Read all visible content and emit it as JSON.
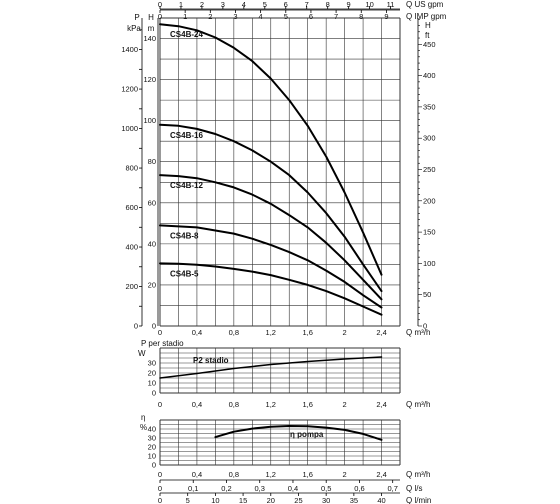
{
  "chart_data": [
    {
      "type": "line",
      "panel": "head",
      "x_unit_label": "Q m³/h",
      "xlim": [
        0,
        2.6
      ],
      "x_ticks": [
        "0",
        "0,4",
        "0,8",
        "1,2",
        "1,6",
        "2",
        "2,4"
      ],
      "top_axes": [
        {
          "label": "Q US gpm",
          "ticks": [
            "0",
            "1",
            "2",
            "3",
            "4",
            "5",
            "6",
            "7",
            "8",
            "9",
            "10",
            "11"
          ],
          "max": 11.45
        },
        {
          "label": "Q IMP gpm",
          "ticks": [
            "0",
            "1",
            "2",
            "3",
            "4",
            "5",
            "6",
            "7",
            "8",
            "9"
          ],
          "max": 9.54
        }
      ],
      "left_axis_p": {
        "label_top": "P",
        "label_unit": "kPa",
        "ticks": [
          "0",
          "200",
          "400",
          "600",
          "800",
          "1000",
          "1200",
          "1400"
        ],
        "max": 1560
      },
      "left_axis_h": {
        "label_top": "H",
        "label_unit": "m",
        "ticks": [
          "0",
          "20",
          "40",
          "60",
          "80",
          "100",
          "120",
          "140"
        ],
        "ylim": [
          0,
          150
        ]
      },
      "right_axis_h": {
        "label_top": "H",
        "label_unit": "ft",
        "ticks": [
          "0",
          "50",
          "100",
          "150",
          "200",
          "250",
          "300",
          "350",
          "400",
          "450"
        ],
        "max": 492
      },
      "series": [
        {
          "name": "CS4B-24",
          "x": [
            0,
            0.2,
            0.4,
            0.6,
            0.8,
            1.0,
            1.2,
            1.4,
            1.6,
            1.8,
            2.0,
            2.2,
            2.4
          ],
          "values": [
            147,
            146,
            144,
            140.5,
            135.5,
            129,
            120.5,
            110,
            97.5,
            82.5,
            65,
            45.5,
            25
          ]
        },
        {
          "name": "CS4B-16",
          "x": [
            0,
            0.2,
            0.4,
            0.6,
            0.8,
            1.0,
            1.2,
            1.4,
            1.6,
            1.8,
            2.0,
            2.2,
            2.4
          ],
          "values": [
            98,
            97.5,
            96,
            93.5,
            90,
            85.5,
            80,
            73.5,
            65,
            55,
            43.5,
            30,
            17
          ]
        },
        {
          "name": "CS4B-12",
          "x": [
            0,
            0.2,
            0.4,
            0.6,
            0.8,
            1.0,
            1.2,
            1.4,
            1.6,
            1.8,
            2.0,
            2.2,
            2.4
          ],
          "values": [
            73.5,
            73,
            72,
            70,
            67.5,
            64,
            59.5,
            54,
            48,
            40.5,
            32,
            22.5,
            13
          ]
        },
        {
          "name": "CS4B-8",
          "x": [
            0,
            0.2,
            0.4,
            0.6,
            0.8,
            1.0,
            1.2,
            1.4,
            1.6,
            1.8,
            2.0,
            2.2,
            2.4
          ],
          "values": [
            49,
            48.5,
            48,
            46.5,
            45,
            42.5,
            39.5,
            36,
            32,
            27,
            21.5,
            15,
            9
          ]
        },
        {
          "name": "CS4B-5",
          "x": [
            0,
            0.2,
            0.4,
            0.6,
            0.8,
            1.0,
            1.2,
            1.4,
            1.6,
            1.8,
            2.0,
            2.2,
            2.4
          ],
          "values": [
            30.5,
            30.3,
            29.8,
            29,
            27.8,
            26.5,
            24.8,
            22.5,
            20,
            17,
            13.5,
            9.5,
            5.5
          ]
        }
      ]
    },
    {
      "type": "line",
      "panel": "power",
      "title": "P per stadio",
      "y_unit_label": "W",
      "x_unit_label": "Q m³/h",
      "xlim": [
        0,
        2.6
      ],
      "ylim": [
        0,
        45
      ],
      "y_ticks": [
        "0",
        "10",
        "20",
        "30"
      ],
      "x_ticks": [
        "0",
        "0,4",
        "0,8",
        "1,2",
        "1,6",
        "2",
        "2,4"
      ],
      "series": [
        {
          "name": "P2 stadio",
          "x": [
            0,
            0.4,
            0.8,
            1.2,
            1.6,
            2.0,
            2.4
          ],
          "values": [
            15,
            19.5,
            24.5,
            28.5,
            31.5,
            34,
            36
          ]
        }
      ]
    },
    {
      "type": "line",
      "panel": "efficiency",
      "y_label": "η",
      "y_unit_label": "%",
      "x_unit_label": "Q m³/h",
      "xlim": [
        0,
        2.6
      ],
      "ylim": [
        0,
        50
      ],
      "y_ticks": [
        "0",
        "10",
        "20",
        "30",
        "40"
      ],
      "x_ticks": [
        "0",
        "0,4",
        "0,8",
        "1,2",
        "1,6",
        "2",
        "2,4"
      ],
      "series": [
        {
          "name": "η pompa",
          "x": [
            0.6,
            0.8,
            1.0,
            1.2,
            1.4,
            1.6,
            1.8,
            2.0,
            2.2,
            2.4
          ],
          "values": [
            31,
            37,
            40.5,
            42.5,
            43.3,
            43,
            41.5,
            39,
            34.5,
            28
          ]
        }
      ],
      "bottom_axes": [
        {
          "label": "Q l/s",
          "ticks": [
            "0",
            "0,1",
            "0,2",
            "0,3",
            "0,4",
            "0,5",
            "0,6",
            "0,7"
          ],
          "max": 0.722
        },
        {
          "label": "Q l/min",
          "ticks": [
            "0",
            "5",
            "10",
            "15",
            "20",
            "25",
            "30",
            "35",
            "40"
          ],
          "max": 43.33
        }
      ]
    }
  ]
}
